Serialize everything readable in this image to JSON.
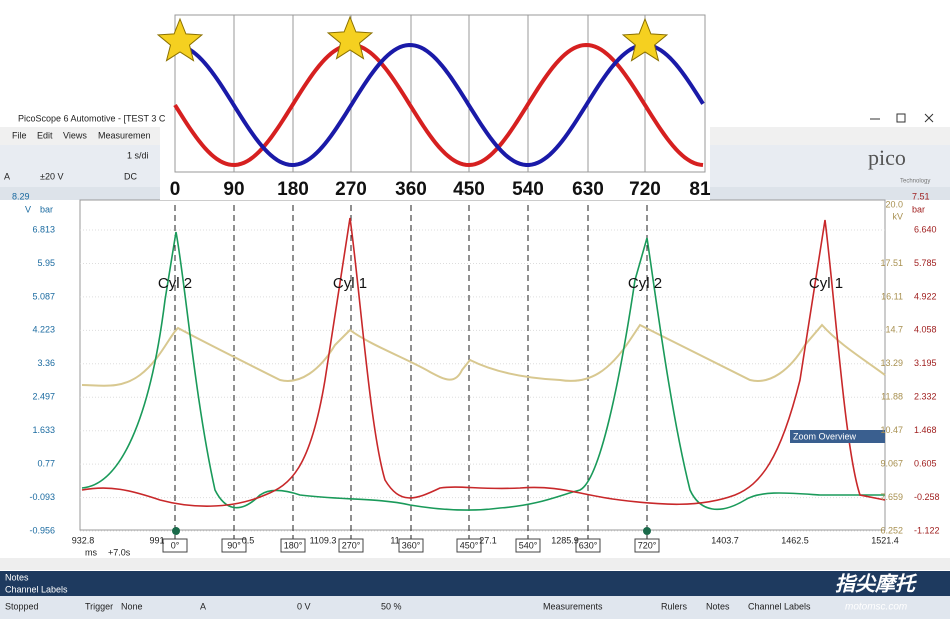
{
  "overlay": {
    "angle_labels": [
      "0",
      "90",
      "180",
      "270",
      "360",
      "450",
      "540",
      "630",
      "720",
      "81"
    ]
  },
  "window": {
    "title": "PicoScope 6 Automotive - [TEST 3 C",
    "menu": [
      "File",
      "Edit",
      "Views",
      "Measuremen"
    ],
    "toolbar": {
      "timebase": "1 s/di",
      "range": "±20 V",
      "coupling": "DC",
      "channel": "A"
    },
    "logo": "pico",
    "logo_sub": "Technology"
  },
  "scope": {
    "left_axis": {
      "top": "8.29",
      "unit": "V",
      "labels": [
        "6.813",
        "5.95",
        "5.087",
        "4.223",
        "3.36",
        "2.497",
        "1.633",
        "0.77",
        "-0.093",
        "-0.956"
      ]
    },
    "left_axis2": {
      "unit": "bar"
    },
    "right_axis_kv": {
      "top": "20.0",
      "unit": "kV",
      "labels": [
        "17.51",
        "16.11",
        "14.7",
        "13.29",
        "11.88",
        "10.47",
        "9.067",
        "7.659",
        "6.252"
      ]
    },
    "right_axis_bar": {
      "top": "7.51",
      "unit": "bar",
      "labels": [
        "6.640",
        "5.785",
        "4.922",
        "4.058",
        "3.195",
        "2.332",
        "1.468",
        "0.605",
        "-0.258",
        "-1.122"
      ]
    },
    "cylinder_labels": [
      "Cyl 2",
      "Cyl 1",
      "Cyl 2",
      "Cyl 1"
    ],
    "time_labels": [
      "932.8",
      "991",
      "0.5",
      "1109.3",
      "11",
      "27.1",
      "1285.9",
      "1403.7",
      "1462.5",
      "1521.4"
    ],
    "time_unit": "ms",
    "time_offset": "+7.0s",
    "degree_markers": [
      "0°",
      "90°",
      "180°",
      "270°",
      "360°",
      "450°",
      "540°",
      "630°",
      "720°"
    ]
  },
  "zoom_overview": "Zoom Overview",
  "panels": [
    "Notes",
    "Channel Labels"
  ],
  "status_bar": {
    "state": "Stopped",
    "trigger": "Trigger",
    "trigger_mode": "None",
    "channel": "A",
    "level": "0 V",
    "pretrigger": "50 %",
    "measurements": "Measurements",
    "rulers": "Rulers",
    "notes": "Notes",
    "channel_labels": "Channel Labels"
  },
  "watermark": {
    "brand": "指尖摩托",
    "url": "motomsc.com"
  }
}
